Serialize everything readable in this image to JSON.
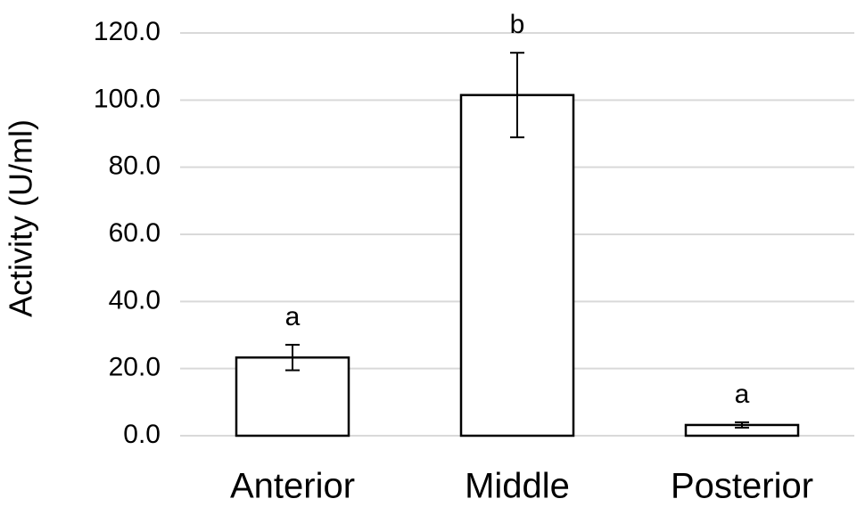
{
  "chart_data": {
    "type": "bar",
    "y_label": "Activity (U/ml)",
    "categories": [
      "Anterior",
      "Middle",
      "Posterior"
    ],
    "values": [
      23.3,
      101.5,
      3.2
    ],
    "errors": [
      3.8,
      12.6,
      0.8
    ],
    "annotations": [
      "a",
      "b",
      "a"
    ],
    "color": "#ffffff",
    "ylim": [
      0,
      120
    ],
    "yticks": [
      {
        "value": 0,
        "label": "0.0"
      },
      {
        "value": 20,
        "label": "20.0"
      },
      {
        "value": 40,
        "label": "40.0"
      },
      {
        "value": 60,
        "label": "60.0"
      },
      {
        "value": 80,
        "label": "80.0"
      },
      {
        "value": 100,
        "label": "100.0"
      },
      {
        "value": 120,
        "label": "120.0"
      }
    ],
    "grid": true
  }
}
